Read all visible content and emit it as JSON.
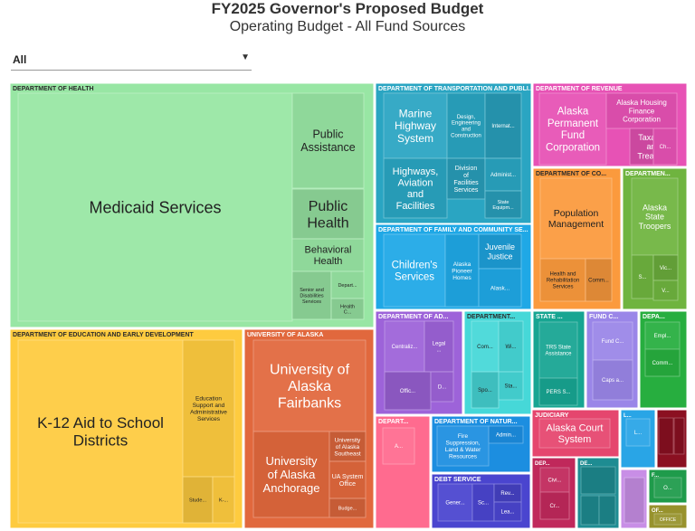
{
  "header": {
    "title": "FY2025 Governor's Proposed Budget",
    "subtitle": "Operating Budget - All Fund Sources"
  },
  "filter": {
    "selected": "All",
    "caret_icon": "chevron-down-icon"
  },
  "chart_data": {
    "type": "treemap",
    "title": "FY2025 Governor's Proposed Budget",
    "subtitle": "Operating Budget - All Fund Sources",
    "departments": [
      {
        "name": "DEPARTMENT OF HEALTH",
        "color": "#98e6a4",
        "components": [
          {
            "name": "Medicaid Services"
          },
          {
            "name": "Public Assistance"
          },
          {
            "name": "Public Health"
          },
          {
            "name": "Behavioral Health"
          },
          {
            "name": "Senior and Disabilities Services"
          },
          {
            "name": "Depart..."
          },
          {
            "name": "Health C..."
          }
        ]
      },
      {
        "name": "DEPARTMENT OF EDUCATION AND EARLY DEVELOPMENT",
        "color": "#fecb3f",
        "components": [
          {
            "name": "K-12 Aid to School Districts"
          },
          {
            "name": "Education Support and Administrative Services"
          },
          {
            "name": "Stude..."
          },
          {
            "name": "K-..."
          }
        ]
      },
      {
        "name": "UNIVERSITY OF ALASKA",
        "color": "#e1683d",
        "components": [
          {
            "name": "University of Alaska Fairbanks"
          },
          {
            "name": "University of Alaska Anchorage"
          },
          {
            "name": "University of Alaska Southeast"
          },
          {
            "name": "UA System Office"
          },
          {
            "name": "Budge..."
          }
        ]
      },
      {
        "name": "DEPARTMENT OF TRANSPORTATION AND PUBLI...",
        "color": "#2aa5c2",
        "components": [
          {
            "name": "Marine Highway System"
          },
          {
            "name": "Design, Engineering and Construction"
          },
          {
            "name": "Internat..."
          },
          {
            "name": "Highways, Aviation and Facilities"
          },
          {
            "name": "Division of Facilities Services"
          },
          {
            "name": "Administ..."
          },
          {
            "name": "State Equipm..."
          }
        ]
      },
      {
        "name": "DEPARTMENT OF FAMILY AND COMMUNITY SE...",
        "color": "#1fa8e6",
        "components": [
          {
            "name": "Children's Services"
          },
          {
            "name": "Alaska Pioneer Homes"
          },
          {
            "name": "Juvenile Justice"
          },
          {
            "name": "Alask..."
          }
        ]
      },
      {
        "name": "DEPARTMENT OF REVENUE",
        "color": "#e752b5",
        "components": [
          {
            "name": "Alaska Permanent Fund Corporation"
          },
          {
            "name": "Alaska Housing Finance Corporation"
          },
          {
            "name": "Taxation and Treasury"
          },
          {
            "name": "Ch..."
          }
        ]
      },
      {
        "name": "DEPARTMENT OF CO...",
        "color": "#fb9a3d",
        "components": [
          {
            "name": "Population Management"
          },
          {
            "name": "Health and Rehabilitation Services"
          },
          {
            "name": "Comm..."
          }
        ]
      },
      {
        "name": "DEPARTMEN...",
        "color": "#6fb43f",
        "components": [
          {
            "name": "Alaska State Troopers"
          },
          {
            "name": "S..."
          },
          {
            "name": "Vic..."
          },
          {
            "name": "V..."
          }
        ]
      },
      {
        "name": "DEPARTMENT OF AD...",
        "color": "#9d63d9",
        "components": [
          {
            "name": "Centraliz..."
          },
          {
            "name": "Legal ..."
          },
          {
            "name": "Offic..."
          },
          {
            "name": "D..."
          }
        ]
      },
      {
        "name": "DEPARTMENT...",
        "color": "#46d8d8",
        "components": [
          {
            "name": "Com..."
          },
          {
            "name": "Wi..."
          },
          {
            "name": "Spo..."
          },
          {
            "name": "Sta..."
          }
        ]
      },
      {
        "name": "STATE ...",
        "color": "#17a592",
        "components": [
          {
            "name": "TRS State Assistance"
          },
          {
            "name": "PERS S..."
          }
        ]
      },
      {
        "name": "FUND C...",
        "color": "#9a86e8",
        "components": [
          {
            "name": "Fund C..."
          },
          {
            "name": "Caps a..."
          }
        ]
      },
      {
        "name": "DEPA...",
        "color": "#27ae3f",
        "components": [
          {
            "name": "Empl..."
          },
          {
            "name": "Comm..."
          }
        ]
      },
      {
        "name": "DEPART...",
        "color": "#ff6b8f",
        "components": [
          {
            "name": "A..."
          }
        ]
      },
      {
        "name": "DEPARTMENT OF NATUR...",
        "color": "#1c8ee0",
        "components": [
          {
            "name": "Fire Suppression, Land & Water Resources"
          },
          {
            "name": "Admin..."
          }
        ]
      },
      {
        "name": "DEBT SERVICE",
        "color": "#4a45cf",
        "components": [
          {
            "name": "Gener..."
          },
          {
            "name": "Sc..."
          },
          {
            "name": "Rev..."
          },
          {
            "name": "Lea..."
          }
        ]
      },
      {
        "name": "JUDICIARY",
        "color": "#e5466e",
        "components": [
          {
            "name": "Alaska Court System"
          }
        ]
      },
      {
        "name": "L...",
        "color": "#29a5e6",
        "components": [
          {
            "name": "L..."
          }
        ]
      },
      {
        "name": "",
        "color": "#8b1021",
        "components": []
      },
      {
        "name": "DEP...",
        "color": "#c0285b",
        "components": [
          {
            "name": "Civi..."
          },
          {
            "name": "Cr..."
          }
        ]
      },
      {
        "name": "DE...",
        "color": "#1e8c92",
        "components": []
      },
      {
        "name": "",
        "color": "#c88ee6",
        "components": []
      },
      {
        "name": "F...",
        "color": "#1f9b4b",
        "components": [
          {
            "name": "O..."
          }
        ]
      },
      {
        "name": "OF...",
        "color": "#97922c",
        "components": [
          {
            "name": "OFFICE"
          }
        ]
      }
    ]
  }
}
